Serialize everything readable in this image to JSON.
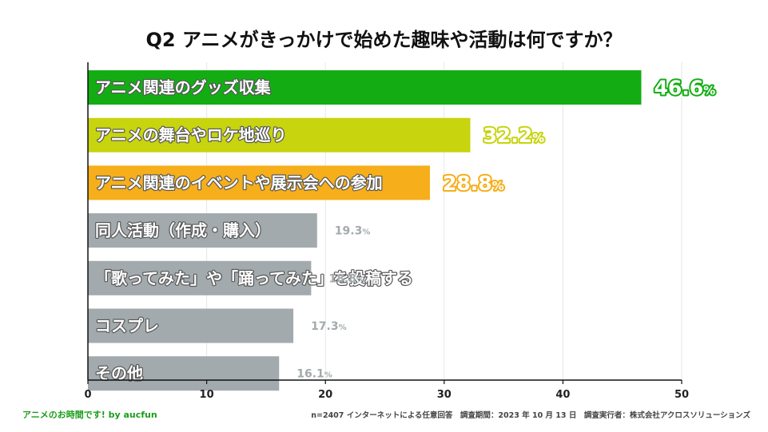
{
  "title": "Q2 アニメがきっかけで始めた趣味や活動は何ですか？",
  "chart_data": {
    "type": "bar",
    "orientation": "horizontal",
    "categories": [
      "アニメ関連のグッズ収集",
      "アニメの舞台やロケ地巡り",
      "アニメ関連のイベントや展示会への参加",
      "同人活動（作成・購入）",
      "「歌ってみた」や「踊ってみた」を投稿する",
      "コスプレ",
      "その他"
    ],
    "values": [
      46.6,
      32.2,
      28.8,
      19.3,
      18.8,
      17.3,
      16.1
    ],
    "value_labels": [
      "46.6",
      "32.2",
      "28.8",
      "19.3",
      "18.8",
      "17.3",
      "16.1"
    ],
    "unit": "%",
    "bar_colors": [
      "#13ad13",
      "#c7d40e",
      "#f6ae1a",
      "#a3aaad",
      "#a3aaad",
      "#a3aaad",
      "#a3aaad"
    ],
    "value_outline_colors": [
      "#13ad13",
      "#c7d40e",
      "#f6ae1a",
      "",
      "",
      "",
      ""
    ],
    "highlighted_count": 3,
    "xlim": [
      0,
      50
    ],
    "xticks": [
      0,
      10,
      20,
      30,
      40,
      50
    ],
    "xtick_labels": [
      "0",
      "10",
      "20",
      "30",
      "40",
      "50"
    ],
    "grid": true,
    "legend": "none"
  },
  "footer": {
    "left": "アニメのお時間です! by aucfun",
    "right": "n=2407 インターネットによる任意回答　調査期間：2023 年 10 月 13 日　調査実行者：株式会社アクロスソリューションズ"
  },
  "colors": {
    "axis": "#111111",
    "grid": "#e6e6e6",
    "muted_value": "#a3aaad",
    "footer_brand": "#1a9e1a"
  }
}
